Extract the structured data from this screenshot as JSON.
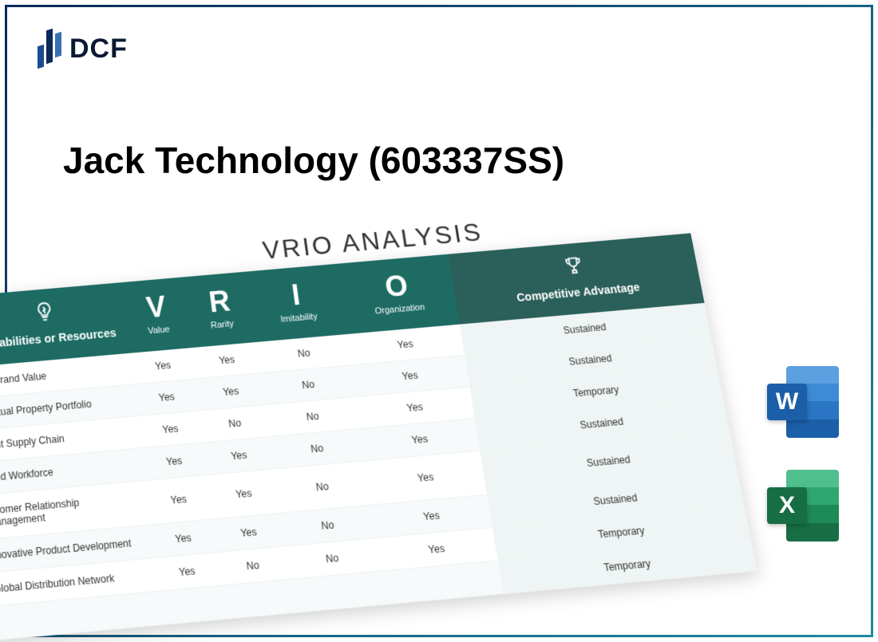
{
  "logo_text": "DCF",
  "title": "Jack Technology (603337SS)",
  "vrio": {
    "heading": "VRIO ANALYSIS",
    "columns": {
      "capabilities": "Capabilities or Resources",
      "v_big": "V",
      "v_small": "Value",
      "r_big": "R",
      "r_small": "Rarity",
      "i_big": "I",
      "i_small": "Imitability",
      "o_big": "O",
      "o_small": "Organization",
      "advantage": "Competitive Advantage"
    },
    "header_bg": "#1d6b63",
    "advantage_header_bg": "#2a5f5a",
    "rows": [
      {
        "cap": "ong Brand Value",
        "v": "Yes",
        "r": "Yes",
        "i": "No",
        "o": "Yes",
        "adv": "Sustained"
      },
      {
        "cap": "ellectual Property Portfolio",
        "v": "Yes",
        "r": "Yes",
        "i": "No",
        "o": "Yes",
        "adv": "Sustained"
      },
      {
        "cap": "icient Supply Chain",
        "v": "Yes",
        "r": "No",
        "i": "No",
        "o": "Yes",
        "adv": "Temporary"
      },
      {
        "cap": "killed Workforce",
        "v": "Yes",
        "r": "Yes",
        "i": "No",
        "o": "Yes",
        "adv": "Sustained"
      },
      {
        "cap": "ustomer Relationship Management",
        "v": "Yes",
        "r": "Yes",
        "i": "No",
        "o": "Yes",
        "adv": "Sustained"
      },
      {
        "cap": "nnovative Product Development",
        "v": "Yes",
        "r": "Yes",
        "i": "No",
        "o": "Yes",
        "adv": "Sustained"
      },
      {
        "cap": "Global Distribution Network",
        "v": "Yes",
        "r": "No",
        "i": "No",
        "o": "Yes",
        "adv": "Temporary"
      },
      {
        "cap": "",
        "v": "",
        "r": "",
        "i": "",
        "o": "",
        "adv": "Temporary"
      }
    ]
  },
  "file_icons": {
    "word_letter": "W",
    "excel_letter": "X",
    "word_color": "#1b5fa8",
    "excel_color": "#176e44"
  }
}
